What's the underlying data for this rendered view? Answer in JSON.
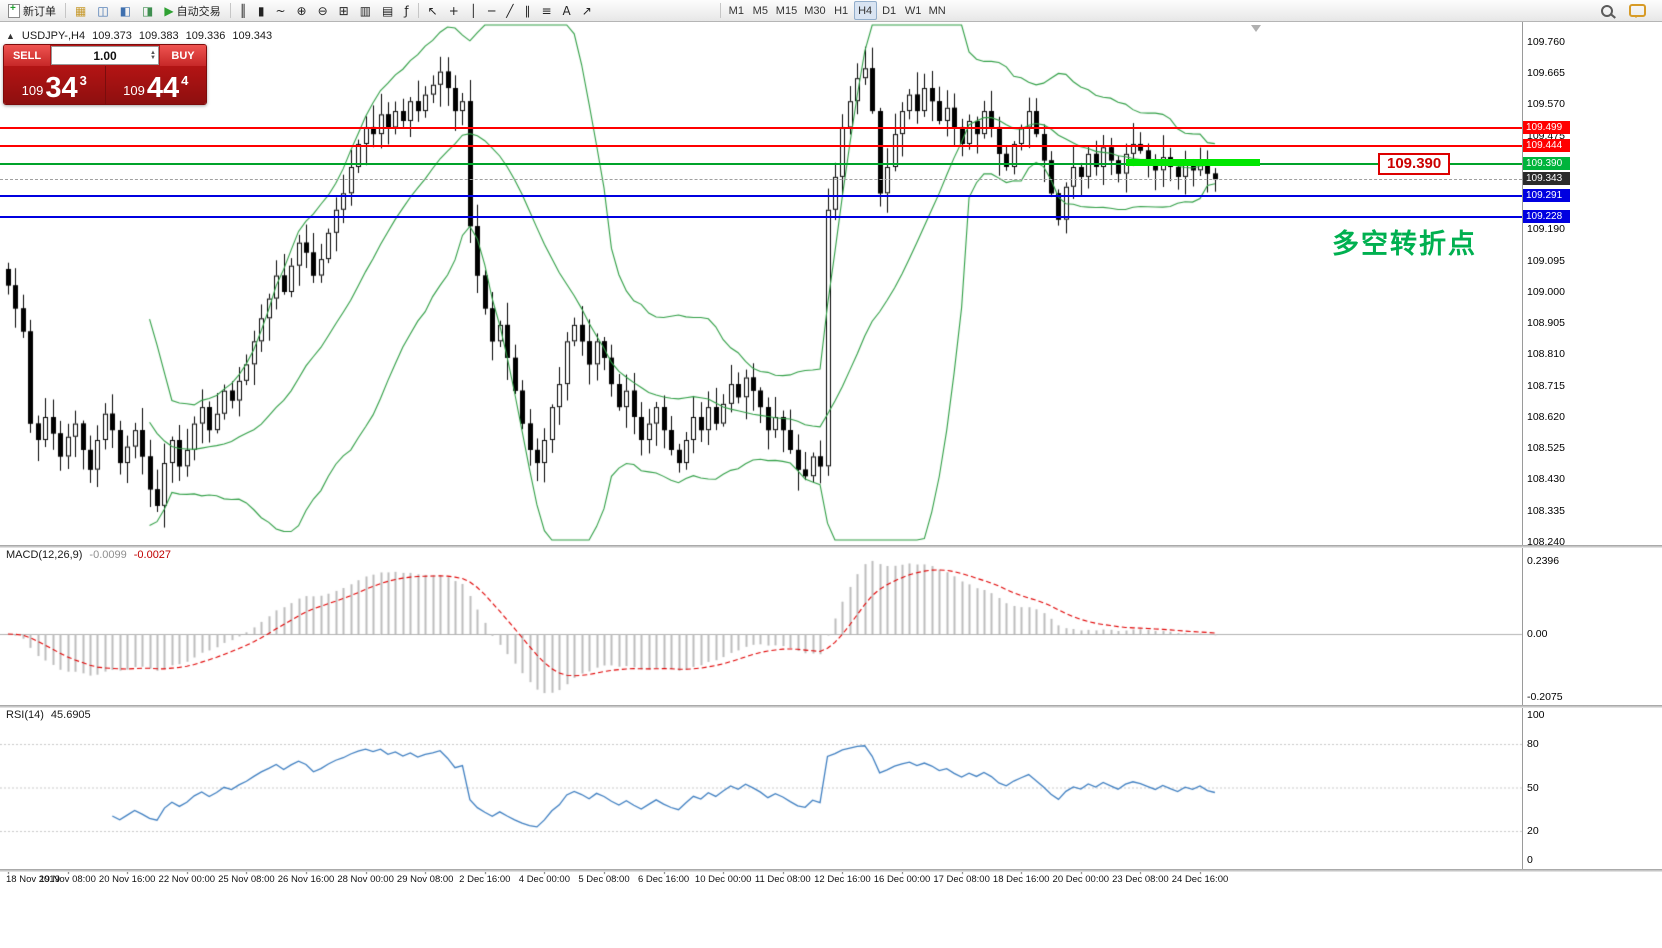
{
  "toolbar": {
    "new_order_label": "新订单",
    "auto_trading_label": "自动交易",
    "auto_trading_icon": "▶",
    "window_icons": [
      {
        "name": "market-watch",
        "glyph": "▦",
        "color": "#c79a2e"
      },
      {
        "name": "data-window",
        "glyph": "◫",
        "color": "#3e6fae"
      },
      {
        "name": "navigator",
        "glyph": "◧",
        "color": "#3e6fae"
      },
      {
        "name": "strategy-tester",
        "glyph": "◨",
        "color": "#3e8e4f"
      }
    ],
    "chart_icons": [
      {
        "name": "bar-chart",
        "glyph": "║"
      },
      {
        "name": "candlestick-chart",
        "glyph": "▮"
      },
      {
        "name": "line-chart",
        "glyph": "~"
      },
      {
        "name": "zoom-in",
        "glyph": "⊕"
      },
      {
        "name": "zoom-out",
        "glyph": "⊖"
      },
      {
        "name": "tile-windows",
        "glyph": "⊞"
      },
      {
        "name": "new-chart",
        "glyph": "▥"
      },
      {
        "name": "profiles",
        "glyph": "▤"
      },
      {
        "name": "indicators",
        "glyph": "ƒ"
      }
    ],
    "drawing_icons": [
      {
        "name": "cursor",
        "glyph": "↖"
      },
      {
        "name": "crosshair",
        "glyph": "+"
      },
      {
        "name": "vertical-line",
        "glyph": "│"
      },
      {
        "name": "horizontal-line",
        "glyph": "─"
      },
      {
        "name": "trendline",
        "glyph": "╱"
      },
      {
        "name": "equidistant-channel",
        "glyph": "∥"
      },
      {
        "name": "fibonacci",
        "glyph": "≡"
      },
      {
        "name": "text-label",
        "glyph": "A"
      },
      {
        "name": "arrow-objects",
        "glyph": "↗"
      }
    ],
    "timeframes": [
      "M1",
      "M5",
      "M15",
      "M30",
      "H1",
      "H4",
      "D1",
      "W1",
      "MN"
    ],
    "active_timeframe": "H4"
  },
  "trade_panel": {
    "sell_label": "SELL",
    "buy_label": "BUY",
    "volume": "1.00",
    "up_icon": "▲",
    "down_icon": "▼",
    "sell_price": {
      "prefix": "109",
      "big": "34",
      "sup": "3"
    },
    "buy_price": {
      "prefix": "109",
      "big": "44",
      "sup": "4"
    }
  },
  "chart_header": {
    "collapse_icon": "▲",
    "symbol": "USDJPY-,H4",
    "open": "109.373",
    "high": "109.383",
    "low": "109.336",
    "close": "109.343"
  },
  "macd_header": {
    "label": "MACD(12,26,9)",
    "value_main": "-0.0099",
    "value_signal": "-0.0027"
  },
  "rsi_header": {
    "label": "RSI(14)",
    "value": "45.6905"
  },
  "annotations": {
    "price_callout": "109.390",
    "cn_note": "多空转折点",
    "cn_note_color": "#00b050"
  },
  "price_badges": [
    {
      "text": "109.499",
      "color": "#ff0000"
    },
    {
      "text": "109.444",
      "color": "#ff0000"
    },
    {
      "text": "109.390",
      "color": "#00b43c"
    },
    {
      "text": "109.343",
      "color": "#2b2b2b"
    },
    {
      "text": "109.291",
      "color": "#0000e0"
    },
    {
      "text": "109.228",
      "color": "#0000e0"
    }
  ],
  "hlines": [
    {
      "price": 109.499,
      "color": "#ff0000",
      "style": "solid",
      "width": 2
    },
    {
      "price": 109.444,
      "color": "#ff0000",
      "style": "solid",
      "width": 2
    },
    {
      "price": 109.39,
      "color": "#00a32a",
      "style": "solid",
      "width": 2
    },
    {
      "price": 109.343,
      "color": "#a0a0a0",
      "style": "dashed",
      "width": 1
    },
    {
      "price": 109.291,
      "color": "#0000e0",
      "style": "solid",
      "width": 2
    },
    {
      "price": 109.228,
      "color": "#0000e0",
      "style": "solid",
      "width": 2
    }
  ],
  "axis": {
    "price_labels": [
      "109.760",
      "109.665",
      "109.570",
      "109.475",
      "109.190",
      "109.095",
      "109.000",
      "108.905",
      "108.810",
      "108.715",
      "108.620",
      "108.525",
      "108.430",
      "108.335",
      "108.240"
    ],
    "macd_labels": [
      "0.2396",
      "0.00",
      "-0.2075"
    ],
    "rsi_labels": [
      "100",
      "80",
      "50",
      "20",
      "0"
    ],
    "time_labels": [
      "18 Nov 2019",
      "19 Nov 08:00",
      "20 Nov 16:00",
      "22 Nov 00:00",
      "25 Nov 08:00",
      "26 Nov 16:00",
      "28 Nov 00:00",
      "29 Nov 08:00",
      "2 Dec 16:00",
      "4 Dec 00:00",
      "5 Dec 08:00",
      "6 Dec 16:00",
      "10 Dec 00:00",
      "11 Dec 08:00",
      "12 Dec 16:00",
      "16 Dec 00:00",
      "17 Dec 08:00",
      "18 Dec 16:00",
      "20 Dec 00:00",
      "23 Dec 08:00",
      "24 Dec 16:00"
    ]
  },
  "chart_data": {
    "type": "candlestick",
    "symbol": "USDJPY",
    "timeframe": "H4",
    "price_range": [
      108.24,
      109.76
    ],
    "open_first": 109.07,
    "closes": [
      109.02,
      108.95,
      108.88,
      108.6,
      108.55,
      108.62,
      108.57,
      108.5,
      108.56,
      108.6,
      108.52,
      108.46,
      108.55,
      108.63,
      108.58,
      108.48,
      108.53,
      108.58,
      108.5,
      108.4,
      108.35,
      108.48,
      108.55,
      108.47,
      108.52,
      108.6,
      108.65,
      108.58,
      108.63,
      108.7,
      108.67,
      108.73,
      108.78,
      108.85,
      108.92,
      108.98,
      109.05,
      109.0,
      109.08,
      109.15,
      109.12,
      109.05,
      109.1,
      109.18,
      109.25,
      109.3,
      109.38,
      109.45,
      109.5,
      109.48,
      109.54,
      109.5,
      109.55,
      109.52,
      109.58,
      109.55,
      109.6,
      109.63,
      109.67,
      109.62,
      109.55,
      109.58,
      109.2,
      109.05,
      108.95,
      108.85,
      108.9,
      108.8,
      108.7,
      108.6,
      108.52,
      108.48,
      108.55,
      108.65,
      108.72,
      108.85,
      108.9,
      108.85,
      108.78,
      108.85,
      108.8,
      108.72,
      108.65,
      108.7,
      108.62,
      108.55,
      108.6,
      108.65,
      108.58,
      108.52,
      108.48,
      108.55,
      108.62,
      108.58,
      108.65,
      108.6,
      108.66,
      108.72,
      108.68,
      108.74,
      108.7,
      108.65,
      108.58,
      108.62,
      108.58,
      108.52,
      108.46,
      108.44,
      108.5,
      108.47,
      109.25,
      109.35,
      109.5,
      109.58,
      109.65,
      109.68,
      109.55,
      109.3,
      109.38,
      109.48,
      109.55,
      109.6,
      109.55,
      109.62,
      109.58,
      109.52,
      109.56,
      109.5,
      109.45,
      109.52,
      109.48,
      109.55,
      109.5,
      109.42,
      109.38,
      109.45,
      109.5,
      109.55,
      109.48,
      109.4,
      109.3,
      109.22,
      109.32,
      109.38,
      109.35,
      109.42,
      109.38,
      109.44,
      109.4,
      109.36,
      109.42,
      109.45,
      109.43,
      109.4,
      109.37,
      109.41,
      109.38,
      109.35,
      109.39,
      109.37,
      109.4,
      109.36,
      109.343
    ],
    "bollinger": {
      "period": 20,
      "deviation": 2,
      "color": "#2f9e44"
    },
    "macd": {
      "fast": 12,
      "slow": 26,
      "signal": 9,
      "range": [
        -0.2075,
        0.2396
      ],
      "histogram_color": "#bdbdbd",
      "signal_color": "#e00000"
    },
    "rsi": {
      "period": 14,
      "value": 45.6905,
      "levels": [
        80,
        50,
        20
      ],
      "line_color": "#3f7fc1"
    },
    "trend_segment": {
      "price": 109.395,
      "bar_start": 150,
      "bar_end": 168,
      "color": "#00e600"
    }
  }
}
